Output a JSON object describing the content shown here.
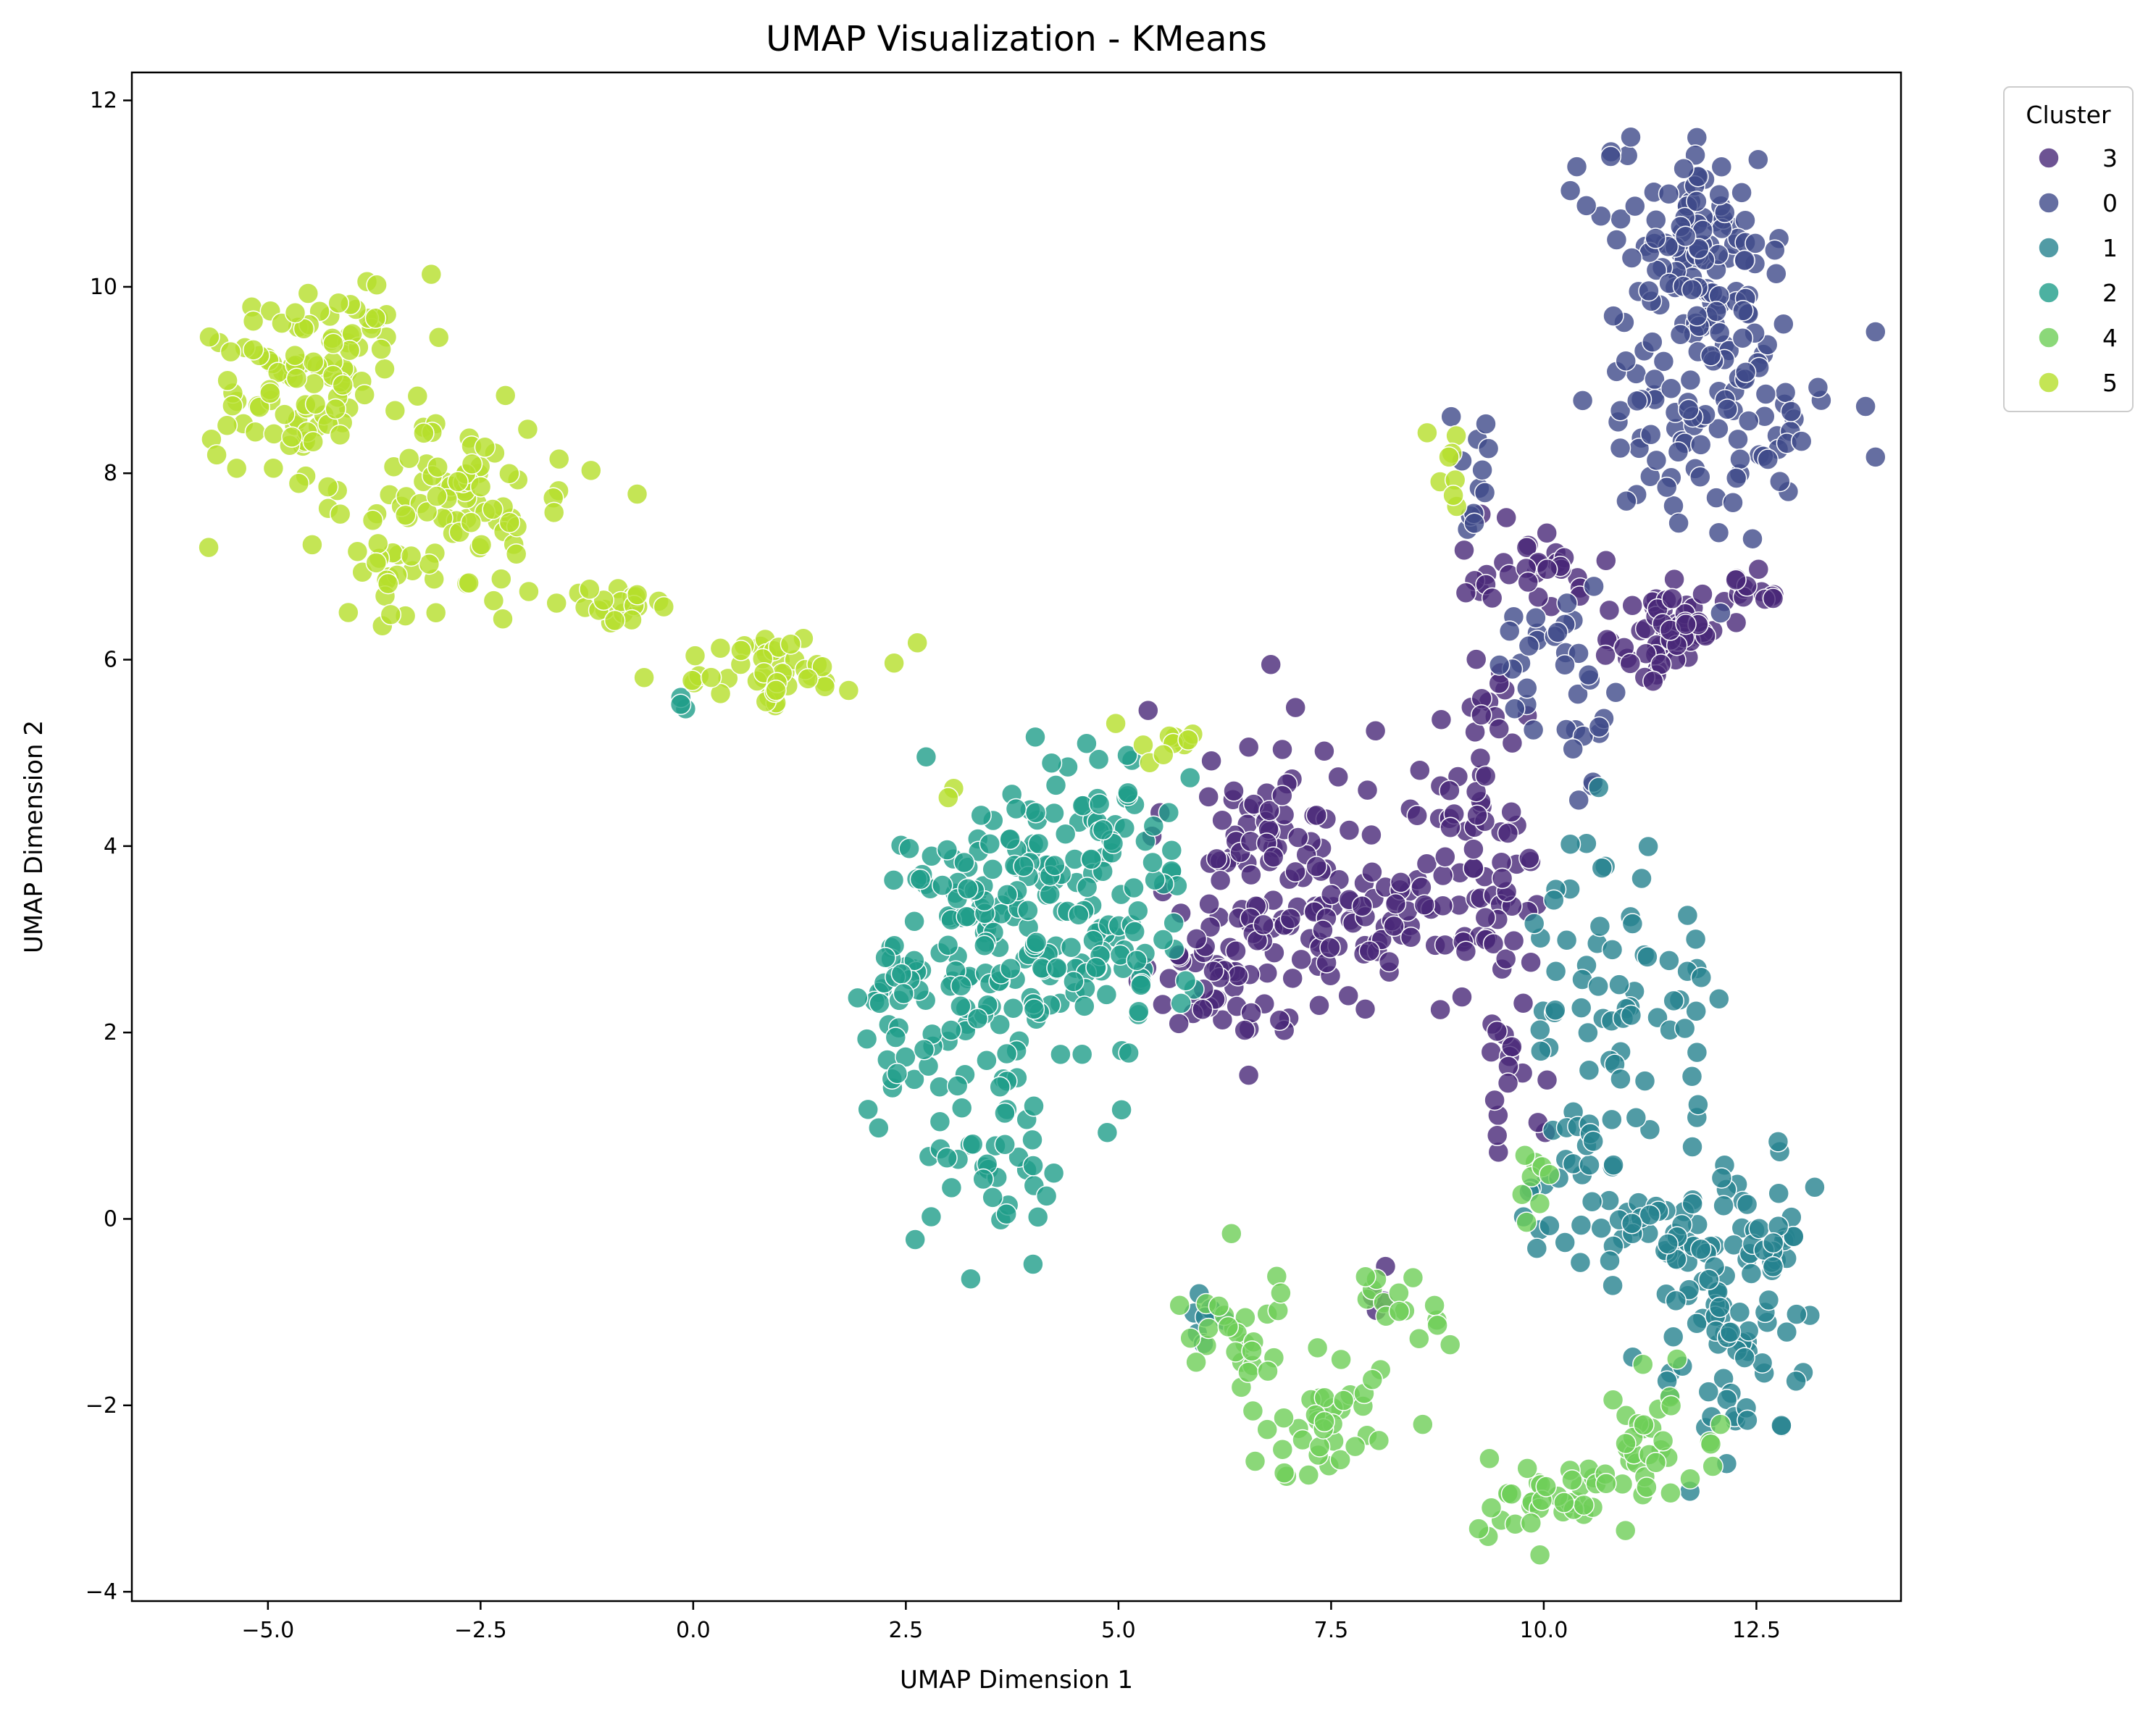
{
  "chart_data": {
    "type": "scatter",
    "title": "UMAP Visualization - KMeans",
    "xlabel": "UMAP Dimension 1",
    "ylabel": "UMAP Dimension 2",
    "xlim": [
      -6.6,
      14.2
    ],
    "ylim": [
      -4.1,
      12.3
    ],
    "x_ticks": [
      -5.0,
      -2.5,
      0.0,
      2.5,
      5.0,
      7.5,
      10.0,
      12.5
    ],
    "x_tick_labels": [
      "−5.0",
      "−2.5",
      "0.0",
      "2.5",
      "5.0",
      "7.5",
      "10.0",
      "12.5"
    ],
    "y_ticks": [
      -4,
      -2,
      0,
      2,
      4,
      6,
      8,
      10,
      12
    ],
    "y_tick_labels": [
      "−4",
      "−2",
      "0",
      "2",
      "4",
      "6",
      "8",
      "10",
      "12"
    ],
    "grid": false,
    "legend": {
      "title": "Cluster",
      "placement": "upper-right-outside"
    },
    "series": [
      {
        "name": "3",
        "color": "#482878",
        "regions": [
          {
            "cx": 6.8,
            "cy": 3.8,
            "sx": 0.6,
            "sy": 0.85,
            "n": 110
          },
          {
            "cx": 6.2,
            "cy": 2.6,
            "sx": 0.4,
            "sy": 0.4,
            "n": 40
          },
          {
            "cx": 8.4,
            "cy": 3.3,
            "sx": 0.6,
            "sy": 0.35,
            "n": 50
          },
          {
            "cx": 9.3,
            "cy": 4.3,
            "sx": 0.35,
            "sy": 0.9,
            "n": 55
          },
          {
            "cx": 9.6,
            "cy": 2.3,
            "sx": 0.2,
            "sy": 0.8,
            "n": 30
          },
          {
            "cx": 11.5,
            "cy": 6.3,
            "sx": 0.3,
            "sy": 0.3,
            "n": 70
          },
          {
            "cx": 9.8,
            "cy": 7.0,
            "sx": 0.5,
            "sy": 0.2,
            "n": 30
          },
          {
            "cx": 12.5,
            "cy": 6.8,
            "sx": 0.2,
            "sy": 0.15,
            "n": 12
          },
          {
            "cx": 8.3,
            "cy": -0.8,
            "sx": 0.2,
            "sy": 0.15,
            "n": 4
          }
        ]
      },
      {
        "name": "0",
        "color": "#3e4a89",
        "regions": [
          {
            "cx": 11.8,
            "cy": 10.5,
            "sx": 0.55,
            "sy": 0.5,
            "n": 100
          },
          {
            "cx": 12.2,
            "cy": 8.8,
            "sx": 0.6,
            "sy": 0.7,
            "n": 90
          },
          {
            "cx": 11.2,
            "cy": 8.9,
            "sx": 0.3,
            "sy": 0.6,
            "n": 25
          },
          {
            "cx": 10.1,
            "cy": 5.9,
            "sx": 0.35,
            "sy": 0.35,
            "n": 30
          },
          {
            "cx": 9.2,
            "cy": 7.7,
            "sx": 0.2,
            "sy": 0.5,
            "n": 12
          },
          {
            "cx": 10.5,
            "cy": 4.9,
            "sx": 0.1,
            "sy": 0.3,
            "n": 6
          }
        ]
      },
      {
        "name": "1",
        "color": "#26828e",
        "regions": [
          {
            "cx": 10.7,
            "cy": 2.6,
            "sx": 0.45,
            "sy": 0.9,
            "n": 55
          },
          {
            "cx": 11.2,
            "cy": 0.2,
            "sx": 0.7,
            "sy": 0.5,
            "n": 70
          },
          {
            "cx": 12.2,
            "cy": -1.1,
            "sx": 0.5,
            "sy": 0.65,
            "n": 75
          },
          {
            "cx": 12.7,
            "cy": -0.3,
            "sx": 0.15,
            "sy": 0.4,
            "n": 15
          },
          {
            "cx": 11.8,
            "cy": 2.5,
            "sx": 0.2,
            "sy": 0.4,
            "n": 10
          },
          {
            "cx": 6.0,
            "cy": -1.1,
            "sx": 0.2,
            "sy": 0.2,
            "n": 8
          }
        ]
      },
      {
        "name": "2",
        "color": "#1f9e89",
        "regions": [
          {
            "cx": 3.7,
            "cy": 3.0,
            "sx": 0.75,
            "sy": 0.8,
            "n": 170
          },
          {
            "cx": 2.6,
            "cy": 2.3,
            "sx": 0.3,
            "sy": 0.6,
            "n": 30
          },
          {
            "cx": 4.9,
            "cy": 3.2,
            "sx": 0.4,
            "sy": 1.0,
            "n": 55
          },
          {
            "cx": 3.6,
            "cy": 0.8,
            "sx": 0.4,
            "sy": 0.6,
            "n": 40
          },
          {
            "cx": 4.7,
            "cy": 4.5,
            "sx": 0.6,
            "sy": 0.3,
            "n": 20
          },
          {
            "cx": -0.1,
            "cy": 5.6,
            "sx": 0.06,
            "sy": 0.08,
            "n": 3
          }
        ]
      },
      {
        "name": "4",
        "color": "#6ece58",
        "regions": [
          {
            "cx": 6.4,
            "cy": -1.2,
            "sx": 0.35,
            "sy": 0.4,
            "n": 25
          },
          {
            "cx": 7.4,
            "cy": -2.2,
            "sx": 0.45,
            "sy": 0.35,
            "n": 40
          },
          {
            "cx": 8.4,
            "cy": -0.9,
            "sx": 0.35,
            "sy": 0.25,
            "n": 15
          },
          {
            "cx": 10.2,
            "cy": -3.0,
            "sx": 0.5,
            "sy": 0.2,
            "n": 40
          },
          {
            "cx": 11.3,
            "cy": -2.5,
            "sx": 0.4,
            "sy": 0.3,
            "n": 30
          },
          {
            "cx": 9.8,
            "cy": 0.3,
            "sx": 0.15,
            "sy": 0.3,
            "n": 8
          }
        ]
      },
      {
        "name": "5",
        "color": "#b5de2b",
        "regions": [
          {
            "cx": -4.6,
            "cy": 9.0,
            "sx": 0.55,
            "sy": 0.45,
            "n": 90
          },
          {
            "cx": -3.8,
            "cy": 9.7,
            "sx": 0.3,
            "sy": 0.3,
            "n": 20
          },
          {
            "cx": -2.8,
            "cy": 7.6,
            "sx": 0.7,
            "sy": 0.45,
            "n": 90
          },
          {
            "cx": -3.6,
            "cy": 6.9,
            "sx": 0.2,
            "sy": 0.3,
            "n": 15
          },
          {
            "cx": -0.9,
            "cy": 6.6,
            "sx": 0.35,
            "sy": 0.1,
            "n": 20
          },
          {
            "cx": 0.9,
            "cy": 5.9,
            "sx": 0.55,
            "sy": 0.2,
            "n": 45
          },
          {
            "cx": 8.9,
            "cy": 7.8,
            "sx": 0.1,
            "sy": 0.4,
            "n": 8
          },
          {
            "cx": 5.6,
            "cy": 5.1,
            "sx": 0.3,
            "sy": 0.15,
            "n": 10
          },
          {
            "cx": 3.1,
            "cy": 4.6,
            "sx": 0.1,
            "sy": 0.05,
            "n": 2
          }
        ]
      }
    ]
  }
}
